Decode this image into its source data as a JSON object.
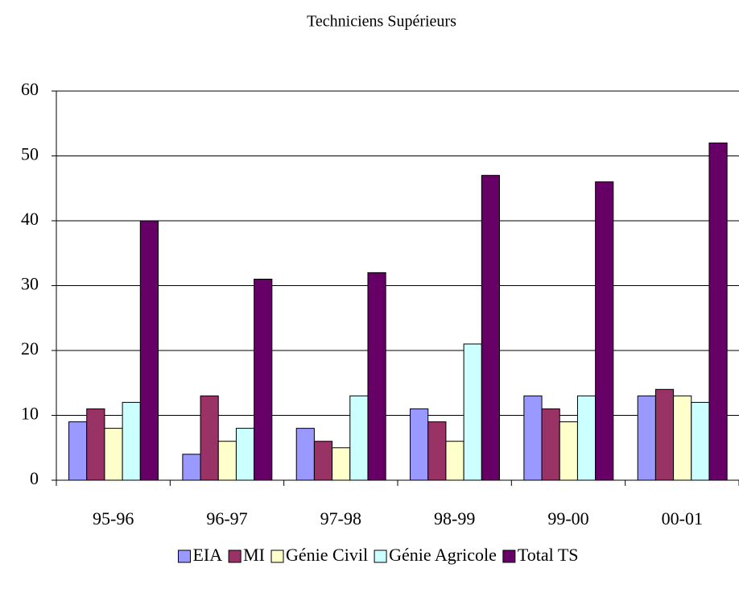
{
  "chart_data": {
    "type": "bar",
    "title": "Techniciens Supérieurs",
    "categories": [
      "95-96",
      "96-97",
      "97-98",
      "98-99",
      "99-00",
      "00-01"
    ],
    "series": [
      {
        "name": "EIA",
        "color": "#9999ff",
        "values": [
          9,
          4,
          8,
          11,
          13,
          13
        ]
      },
      {
        "name": "MI",
        "color": "#993366",
        "values": [
          11,
          13,
          6,
          9,
          11,
          14
        ]
      },
      {
        "name": "Génie Civil",
        "color": "#ffffcc",
        "values": [
          8,
          6,
          5,
          6,
          9,
          13
        ]
      },
      {
        "name": "Génie Agricole",
        "color": "#ccffff",
        "values": [
          12,
          8,
          13,
          21,
          13,
          12
        ]
      },
      {
        "name": "Total TS",
        "color": "#660066",
        "values": [
          40,
          31,
          32,
          47,
          46,
          52
        ]
      }
    ],
    "ylim": [
      0,
      60
    ],
    "yticks": [
      0,
      10,
      20,
      30,
      40,
      50,
      60
    ],
    "grid": true,
    "legend": "bottom"
  }
}
